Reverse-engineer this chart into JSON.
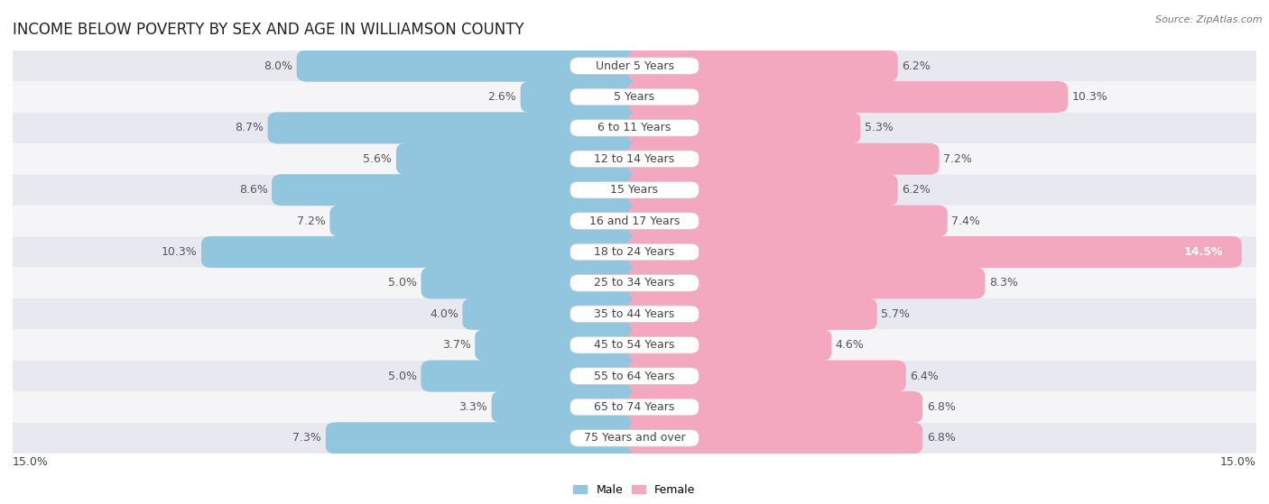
{
  "title": "INCOME BELOW POVERTY BY SEX AND AGE IN WILLIAMSON COUNTY",
  "source": "Source: ZipAtlas.com",
  "categories": [
    "Under 5 Years",
    "5 Years",
    "6 to 11 Years",
    "12 to 14 Years",
    "15 Years",
    "16 and 17 Years",
    "18 to 24 Years",
    "25 to 34 Years",
    "35 to 44 Years",
    "45 to 54 Years",
    "55 to 64 Years",
    "65 to 74 Years",
    "75 Years and over"
  ],
  "male": [
    8.0,
    2.6,
    8.7,
    5.6,
    8.6,
    7.2,
    10.3,
    5.0,
    4.0,
    3.7,
    5.0,
    3.3,
    7.3
  ],
  "female": [
    6.2,
    10.3,
    5.3,
    7.2,
    6.2,
    7.4,
    14.5,
    8.3,
    5.7,
    4.6,
    6.4,
    6.8,
    6.8
  ],
  "male_color": "#92c5de",
  "female_color": "#f4a8c0",
  "background_row_odd": "#e8e8f0",
  "background_row_even": "#f5f5f8",
  "xlim": 15.0,
  "legend_male": "Male",
  "legend_female": "Female",
  "title_fontsize": 12,
  "label_fontsize": 9,
  "category_fontsize": 9,
  "tick_fontsize": 9
}
